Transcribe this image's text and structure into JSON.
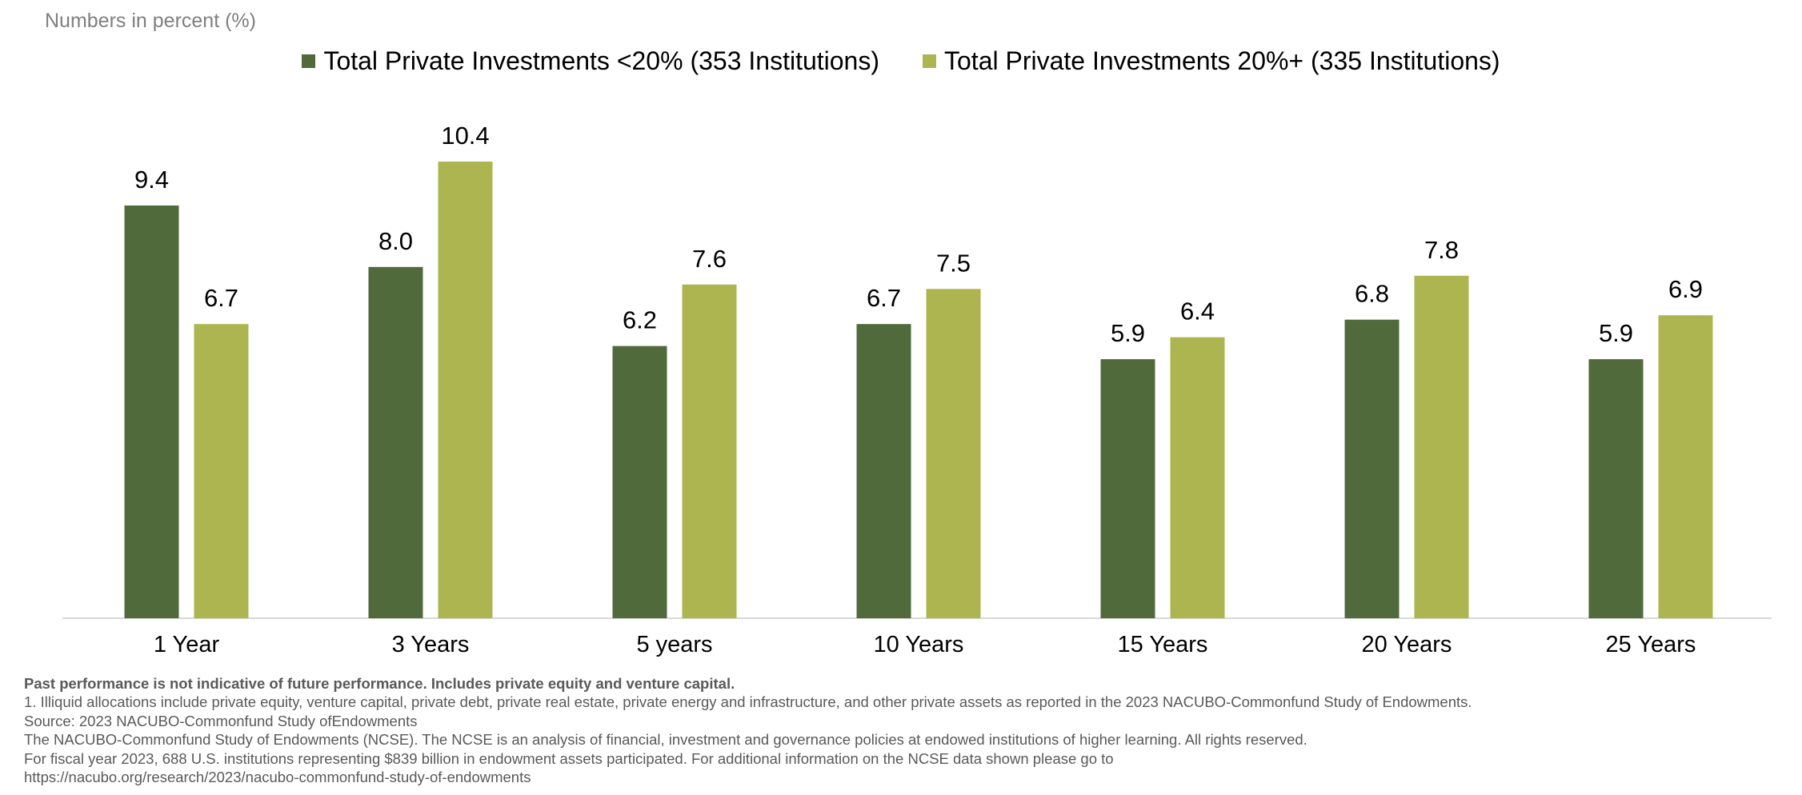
{
  "chart_data": {
    "type": "bar",
    "units_note": "Numbers in percent (%)",
    "categories": [
      "1 Year",
      "3 Years",
      "5 years",
      "10 Years",
      "15 Years",
      "20 Years",
      "25 Years"
    ],
    "series": [
      {
        "name": "Total Private Investments <20% (353 Institutions)",
        "color": "#516a3b",
        "values": [
          9.4,
          8.0,
          6.2,
          6.7,
          5.9,
          6.8,
          5.9
        ],
        "labels": [
          "9.4",
          "8.0",
          "6.2",
          "6.7",
          "5.9",
          "6.8",
          "5.9"
        ]
      },
      {
        "name": "Total Private Investments 20%+ (335 Institutions)",
        "color": "#adb550",
        "values": [
          6.7,
          10.4,
          7.6,
          7.5,
          6.4,
          7.8,
          6.9
        ],
        "labels": [
          "6.7",
          "10.4",
          "7.6",
          "7.5",
          "6.4",
          "7.8",
          "6.9"
        ]
      }
    ],
    "ylim": [
      0,
      12
    ],
    "grid": false,
    "legend_position": "top-center"
  },
  "footnotes": {
    "disclaimer": "Past performance is not indicative of future performance. Includes private equity and venture capital.",
    "note1": "1. Illiquid allocations include private equity, venture capital, private debt, private real estate, private energy and infrastructure, and other private assets as reported in the 2023 NACUBO-Commonfund Study of Endowments.",
    "source": "Source: 2023 NACUBO-Commonfund Study ofEndowments",
    "ncse": "The NACUBO-Commonfund Study of Endowments (NCSE). The NCSE is an analysis of financial, investment and governance policies at endowed institutions of higher learning. All rights reserved.",
    "fiscal": "For fiscal year 2023, 688 U.S. institutions representing $839 billion in endowment assets participated. For additional information on the NCSE data shown please go to",
    "url": "https://nacubo.org/research/2023/nacubo-commonfund-study-of-endowments"
  }
}
